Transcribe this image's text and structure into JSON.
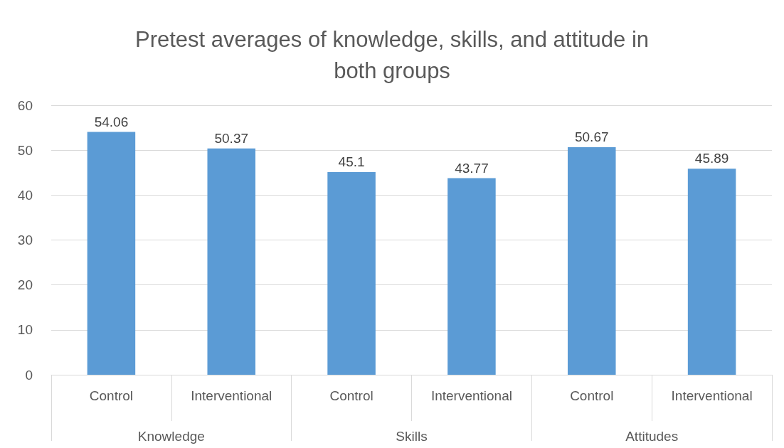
{
  "chart_data": {
    "type": "bar",
    "title": "Pretest averages of knowledge, skills, and attitude in\nboth groups",
    "categories": [
      "Control",
      "Interventional",
      "Control",
      "Interventional",
      "Control",
      "Interventional"
    ],
    "values": [
      54.06,
      50.37,
      45.1,
      43.77,
      50.67,
      45.89
    ],
    "color": "#5b9bd5",
    "annotations": [
      "Knowledge",
      "Skills",
      "Attitudes"
    ],
    "ylim": [
      0,
      60
    ],
    "yticks": [
      0,
      10,
      20,
      30,
      40,
      50,
      60
    ],
    "grid": "y",
    "data_labels": true
  }
}
